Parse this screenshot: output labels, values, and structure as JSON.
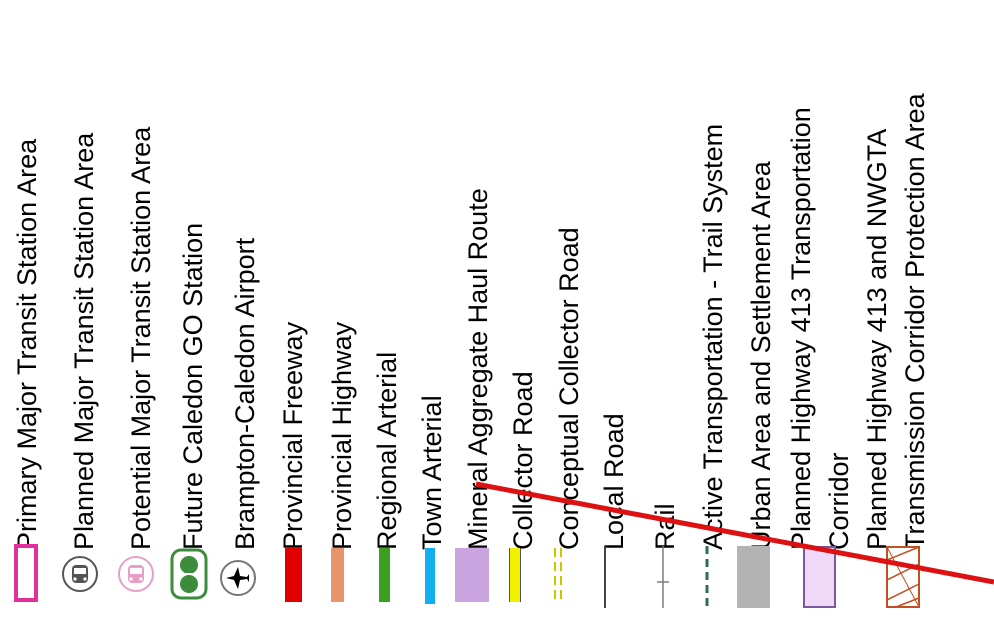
{
  "legend": {
    "items": [
      {
        "label": "Primary Major Transit Station Area",
        "symbol": "magenta-outline-box-icon"
      },
      {
        "label": "Planned Major Transit Station Area",
        "symbol": "bus-circle-icon"
      },
      {
        "label": "Potential Major Transit Station Area",
        "symbol": "bus-circle-pink-icon"
      },
      {
        "label": "Future Caledon GO Station",
        "symbol": "go-transit-icon"
      },
      {
        "label": "Brampton-Caledon Airport",
        "symbol": "airplane-icon"
      },
      {
        "label": "Provincial Freeway",
        "symbol": "red-bar-icon"
      },
      {
        "label": "Provincial Highway",
        "symbol": "salmon-bar-icon"
      },
      {
        "label": "Regional Arterial",
        "symbol": "green-bar-icon"
      },
      {
        "label": "Town Arterial",
        "symbol": "cyan-bar-icon"
      },
      {
        "label": "Mineral Aggregate Haul Route",
        "symbol": "lilac-box-icon"
      },
      {
        "label": "Collector Road",
        "symbol": "yellow-bar-icon"
      },
      {
        "label": "Conceptual Collector Road",
        "symbol": "yellow-dashed-line-icon"
      },
      {
        "label": "Local Road",
        "symbol": "grey-line-icon"
      },
      {
        "label": "Rail",
        "symbol": "rail-line-icon"
      },
      {
        "label": "Active Transportation - Trail System",
        "symbol": "green-dashed-line-icon"
      },
      {
        "label": "Urban Area and Settlement Area",
        "symbol": "grey-box-icon"
      },
      {
        "label_lines": [
          "Planned Highway 413 Transportation",
          "Corridor"
        ],
        "symbol": "purple-outline-box-icon"
      },
      {
        "label_lines": [
          "Planned Highway 413 and NWGTA",
          "Transmission Corridor Protection Area"
        ],
        "symbol": "hatched-box-icon"
      }
    ]
  },
  "colors": {
    "magenta": "#e0309a",
    "pink": "#e6a0c8",
    "go_green": "#3c8c3c",
    "red": "#e00000",
    "salmon": "#e8956b",
    "green": "#3aa020",
    "cyan": "#10b0f0",
    "lilac": "#c9a4e0",
    "yellow": "#f0f000",
    "rail_grey": "#7a7a7a",
    "trail_green": "#2e6e4e",
    "urban_grey": "#b3b3b3",
    "corridor_fill": "#f0d8f8",
    "corridor_stroke": "#7a5a9a",
    "hatch": "#c05020",
    "overlay_red": "#dd1111"
  }
}
